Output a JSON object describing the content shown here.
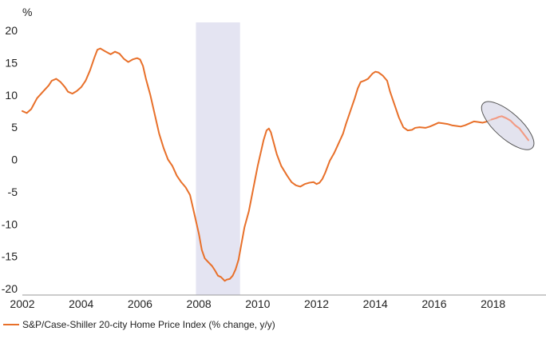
{
  "colors": {
    "line": "#e8702a",
    "line_highlight": "#f39a82",
    "recession_band": "#e4e4f2",
    "highlight_ellipse_fill": "#d9d9e8",
    "highlight_ellipse_stroke": "#555555",
    "axis": "#999999",
    "zero_line": "#bbbbbb"
  },
  "chart_data": {
    "type": "line",
    "title": "",
    "xlabel": "",
    "ylabel": "%",
    "xlim": [
      2002,
      2019.8
    ],
    "ylim": [
      -20,
      20
    ],
    "x_ticks": [
      "2002",
      "2004",
      "2006",
      "2008",
      "2010",
      "2012",
      "2014",
      "2016",
      "2018"
    ],
    "y_ticks": [
      "20",
      "15",
      "10",
      "5",
      "0",
      "-5",
      "-10",
      "-15",
      "-20"
    ],
    "grid": false,
    "legend_position": "bottom-left",
    "recession_band": [
      2007.9,
      2009.4
    ],
    "highlight_ellipse": {
      "x_range": [
        2017.7,
        2019.3
      ],
      "y_range": [
        2.0,
        8.5
      ]
    },
    "series": [
      {
        "name": "S&P/Case-Shiller 20-city Home Price Index (% change, y/y)",
        "points": [
          [
            2002.0,
            7.5
          ],
          [
            2002.15,
            7.2
          ],
          [
            2002.3,
            7.8
          ],
          [
            2002.5,
            9.5
          ],
          [
            2002.7,
            10.5
          ],
          [
            2002.9,
            11.5
          ],
          [
            2003.0,
            12.2
          ],
          [
            2003.15,
            12.5
          ],
          [
            2003.3,
            12.0
          ],
          [
            2003.45,
            11.2
          ],
          [
            2003.55,
            10.5
          ],
          [
            2003.7,
            10.2
          ],
          [
            2003.85,
            10.6
          ],
          [
            2004.0,
            11.2
          ],
          [
            2004.15,
            12.2
          ],
          [
            2004.3,
            13.8
          ],
          [
            2004.45,
            15.8
          ],
          [
            2004.55,
            17.0
          ],
          [
            2004.65,
            17.2
          ],
          [
            2004.8,
            16.8
          ],
          [
            2005.0,
            16.3
          ],
          [
            2005.15,
            16.7
          ],
          [
            2005.3,
            16.4
          ],
          [
            2005.45,
            15.6
          ],
          [
            2005.6,
            15.1
          ],
          [
            2005.75,
            15.5
          ],
          [
            2005.9,
            15.7
          ],
          [
            2006.0,
            15.5
          ],
          [
            2006.1,
            14.5
          ],
          [
            2006.2,
            12.5
          ],
          [
            2006.35,
            10.0
          ],
          [
            2006.5,
            7.0
          ],
          [
            2006.65,
            4.0
          ],
          [
            2006.8,
            1.8
          ],
          [
            2006.95,
            0.0
          ],
          [
            2007.1,
            -1.0
          ],
          [
            2007.25,
            -2.5
          ],
          [
            2007.4,
            -3.5
          ],
          [
            2007.55,
            -4.3
          ],
          [
            2007.7,
            -5.5
          ],
          [
            2007.85,
            -8.5
          ],
          [
            2008.0,
            -11.5
          ],
          [
            2008.1,
            -14.0
          ],
          [
            2008.2,
            -15.3
          ],
          [
            2008.3,
            -15.8
          ],
          [
            2008.45,
            -16.5
          ],
          [
            2008.55,
            -17.2
          ],
          [
            2008.65,
            -18.0
          ],
          [
            2008.75,
            -18.2
          ],
          [
            2008.88,
            -18.8
          ],
          [
            2008.95,
            -18.6
          ],
          [
            2009.05,
            -18.5
          ],
          [
            2009.15,
            -18.0
          ],
          [
            2009.25,
            -17.0
          ],
          [
            2009.35,
            -15.5
          ],
          [
            2009.45,
            -13.0
          ],
          [
            2009.55,
            -10.5
          ],
          [
            2009.7,
            -8.0
          ],
          [
            2009.85,
            -4.5
          ],
          [
            2010.0,
            -1.0
          ],
          [
            2010.1,
            1.0
          ],
          [
            2010.2,
            3.0
          ],
          [
            2010.3,
            4.5
          ],
          [
            2010.38,
            4.8
          ],
          [
            2010.45,
            4.2
          ],
          [
            2010.55,
            2.5
          ],
          [
            2010.65,
            0.8
          ],
          [
            2010.8,
            -1.0
          ],
          [
            2011.0,
            -2.5
          ],
          [
            2011.15,
            -3.5
          ],
          [
            2011.3,
            -4.0
          ],
          [
            2011.45,
            -4.2
          ],
          [
            2011.6,
            -3.8
          ],
          [
            2011.75,
            -3.6
          ],
          [
            2011.9,
            -3.5
          ],
          [
            2012.0,
            -3.8
          ],
          [
            2012.1,
            -3.6
          ],
          [
            2012.2,
            -3.0
          ],
          [
            2012.3,
            -2.0
          ],
          [
            2012.45,
            -0.2
          ],
          [
            2012.6,
            1.0
          ],
          [
            2012.75,
            2.5
          ],
          [
            2012.9,
            4.0
          ],
          [
            2013.0,
            5.5
          ],
          [
            2013.15,
            7.5
          ],
          [
            2013.3,
            9.5
          ],
          [
            2013.4,
            11.0
          ],
          [
            2013.5,
            12.0
          ],
          [
            2013.62,
            12.2
          ],
          [
            2013.75,
            12.5
          ],
          [
            2013.9,
            13.3
          ],
          [
            2014.0,
            13.6
          ],
          [
            2014.1,
            13.5
          ],
          [
            2014.25,
            13.0
          ],
          [
            2014.4,
            12.2
          ],
          [
            2014.5,
            10.5
          ],
          [
            2014.65,
            8.5
          ],
          [
            2014.8,
            6.5
          ],
          [
            2014.95,
            5.0
          ],
          [
            2015.1,
            4.5
          ],
          [
            2015.25,
            4.6
          ],
          [
            2015.35,
            4.9
          ],
          [
            2015.5,
            5.0
          ],
          [
            2015.7,
            4.9
          ],
          [
            2015.85,
            5.1
          ],
          [
            2016.0,
            5.4
          ],
          [
            2016.15,
            5.7
          ],
          [
            2016.3,
            5.6
          ],
          [
            2016.45,
            5.5
          ],
          [
            2016.6,
            5.3
          ],
          [
            2016.75,
            5.2
          ],
          [
            2016.9,
            5.1
          ],
          [
            2017.05,
            5.3
          ],
          [
            2017.2,
            5.6
          ],
          [
            2017.35,
            5.9
          ],
          [
            2017.5,
            5.8
          ],
          [
            2017.65,
            5.7
          ],
          [
            2017.8,
            5.9
          ],
          [
            2017.95,
            6.2
          ],
          [
            2018.1,
            6.4
          ],
          [
            2018.2,
            6.6
          ],
          [
            2018.3,
            6.7
          ],
          [
            2018.45,
            6.4
          ],
          [
            2018.6,
            6.0
          ],
          [
            2018.75,
            5.3
          ],
          [
            2018.9,
            4.8
          ],
          [
            2019.0,
            4.2
          ],
          [
            2019.1,
            3.6
          ],
          [
            2019.2,
            3.0
          ]
        ]
      }
    ]
  },
  "legend": {
    "label": "S&P/Case-Shiller 20-city Home Price Index (% change, y/y)"
  }
}
